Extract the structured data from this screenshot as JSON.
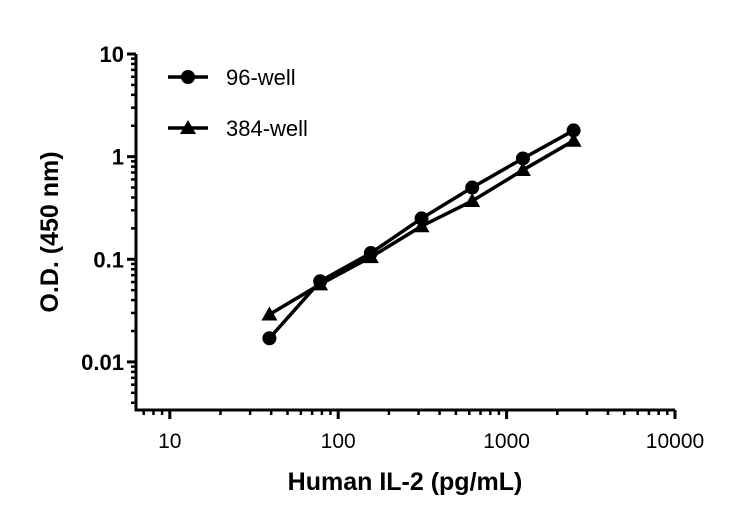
{
  "chart_data": {
    "type": "line",
    "title": "",
    "xlabel": "Human IL-2 (pg/mL)",
    "ylabel": "O.D. (450 nm)",
    "xscale": "log",
    "yscale": "log",
    "xlim": [
      6.3,
      10000
    ],
    "ylim": [
      0.0034,
      10
    ],
    "xticks": [
      10,
      100,
      1000,
      10000
    ],
    "xtick_labels": [
      "10",
      "100",
      "1000",
      "10000"
    ],
    "yticks": [
      0.01,
      0.1,
      1,
      10
    ],
    "ytick_labels": [
      "0.01",
      "0.1",
      "1",
      "10"
    ],
    "grid": false,
    "legend_position": "top-left",
    "x": [
      39.06,
      78.13,
      156.25,
      312.5,
      625,
      1250,
      2500
    ],
    "series": [
      {
        "name": "96-well",
        "marker": "circle",
        "color": "#000000",
        "values": [
          0.017,
          0.061,
          0.115,
          0.25,
          0.5,
          0.96,
          1.8
        ]
      },
      {
        "name": "384-well",
        "marker": "triangle",
        "color": "#000000",
        "values": [
          0.029,
          0.057,
          0.105,
          0.21,
          0.37,
          0.74,
          1.43
        ]
      }
    ]
  }
}
